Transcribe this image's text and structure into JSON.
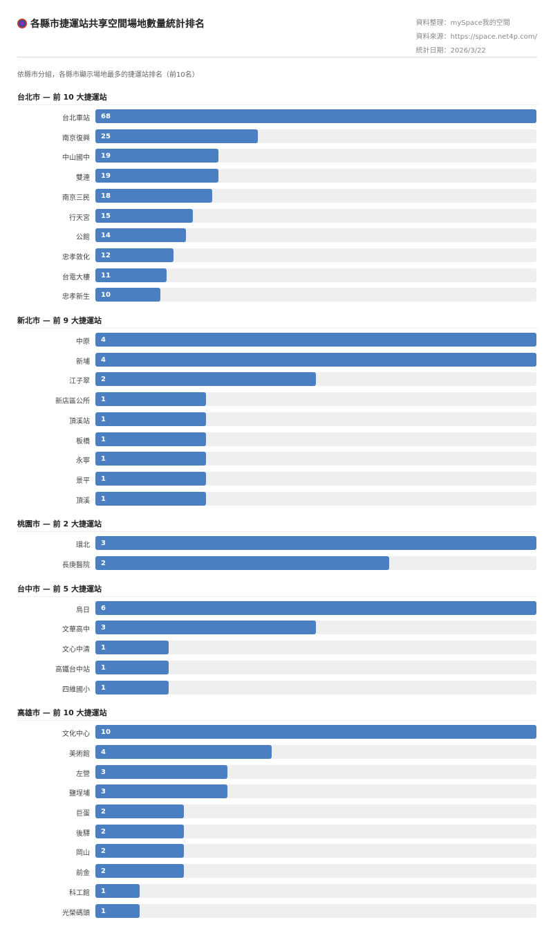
{
  "header": {
    "title": "各縣市捷運站共享空間場地數量統計排名",
    "meta": [
      "資料整理：mySpace我的空間",
      "資料來源：https://space.net4p.com/",
      "統計日期：2026/3/22"
    ],
    "subtitle": "依縣市分組，各縣市顯示場地最多的捷運站排名（前10名）"
  },
  "colors": {
    "bar": "#4a7fc1",
    "track": "#efefef"
  },
  "chart_data": [
    {
      "type": "bar",
      "orientation": "horizontal",
      "title": "台北市 — 前 10 大捷運站",
      "categories": [
        "台北車站",
        "南京復興",
        "中山國中",
        "雙連",
        "南京三民",
        "行天宮",
        "公館",
        "忠孝敦化",
        "台電大樓",
        "忠孝新生"
      ],
      "values": [
        68,
        25,
        19,
        19,
        18,
        15,
        14,
        12,
        11,
        10
      ],
      "max": 68
    },
    {
      "type": "bar",
      "orientation": "horizontal",
      "title": "新北市 — 前 9 大捷運站",
      "categories": [
        "中原",
        "新埔",
        "江子翠",
        "新店區公所",
        "頂溪站",
        "板橋",
        "永寧",
        "景平",
        "頂溪"
      ],
      "values": [
        4,
        4,
        2,
        1,
        1,
        1,
        1,
        1,
        1
      ],
      "max": 4
    },
    {
      "type": "bar",
      "orientation": "horizontal",
      "title": "桃園市 — 前 2 大捷運站",
      "categories": [
        "環北",
        "長庚醫院"
      ],
      "values": [
        3,
        2
      ],
      "max": 3
    },
    {
      "type": "bar",
      "orientation": "horizontal",
      "title": "台中市 — 前 5 大捷運站",
      "categories": [
        "烏日",
        "文華高中",
        "文心中清",
        "高鐵台中站",
        "四維國小"
      ],
      "values": [
        6,
        3,
        1,
        1,
        1
      ],
      "max": 6
    },
    {
      "type": "bar",
      "orientation": "horizontal",
      "title": "高雄市 — 前 10 大捷運站",
      "categories": [
        "文化中心",
        "美術館",
        "左營",
        "鹽埕埔",
        "巨蛋",
        "後驛",
        "岡山",
        "前金",
        "科工館",
        "光榮碼頭"
      ],
      "values": [
        10,
        4,
        3,
        3,
        2,
        2,
        2,
        2,
        1,
        1
      ],
      "max": 10
    }
  ]
}
